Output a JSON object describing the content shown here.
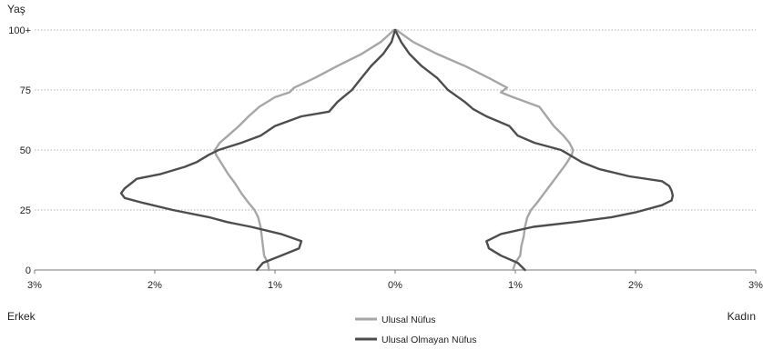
{
  "chart_data": {
    "type": "line",
    "subtype": "population-pyramid",
    "title": "",
    "ylabel": "Yaş",
    "left_label": "Erkek",
    "right_label": "Kadın",
    "xlim": [
      -3,
      3
    ],
    "ylim": [
      0,
      100
    ],
    "x_ticks": [
      {
        "value": -3,
        "label": "3%"
      },
      {
        "value": -2,
        "label": "2%"
      },
      {
        "value": -1,
        "label": "1%"
      },
      {
        "value": 0,
        "label": "0%"
      },
      {
        "value": 1,
        "label": "1%"
      },
      {
        "value": 2,
        "label": "2%"
      },
      {
        "value": 3,
        "label": "3%"
      }
    ],
    "y_ticks": [
      {
        "value": 0,
        "label": "0"
      },
      {
        "value": 25,
        "label": "25"
      },
      {
        "value": 50,
        "label": "50"
      },
      {
        "value": 75,
        "label": "75"
      },
      {
        "value": 100,
        "label": "100+"
      }
    ],
    "grid": "horizontal dotted",
    "legend_position": "bottom-center",
    "series": [
      {
        "name": "Ulusal Nüfus",
        "color": "#a6a6a6",
        "male": [
          [
            0,
            1.05
          ],
          [
            3,
            1.06
          ],
          [
            6,
            1.09
          ],
          [
            10,
            1.1
          ],
          [
            14,
            1.11
          ],
          [
            18,
            1.12
          ],
          [
            22,
            1.14
          ],
          [
            25,
            1.17
          ],
          [
            28,
            1.22
          ],
          [
            32,
            1.28
          ],
          [
            36,
            1.33
          ],
          [
            40,
            1.39
          ],
          [
            44,
            1.44
          ],
          [
            48,
            1.49
          ],
          [
            50,
            1.5
          ],
          [
            53,
            1.46
          ],
          [
            56,
            1.39
          ],
          [
            60,
            1.3
          ],
          [
            64,
            1.22
          ],
          [
            68,
            1.13
          ],
          [
            72,
            1.0
          ],
          [
            74,
            0.88
          ],
          [
            76,
            0.84
          ],
          [
            80,
            0.67
          ],
          [
            85,
            0.48
          ],
          [
            90,
            0.28
          ],
          [
            95,
            0.12
          ],
          [
            100,
            0.01
          ]
        ],
        "female": [
          [
            0,
            0.98
          ],
          [
            3,
            1.0
          ],
          [
            6,
            1.04
          ],
          [
            10,
            1.05
          ],
          [
            14,
            1.07
          ],
          [
            18,
            1.08
          ],
          [
            22,
            1.1
          ],
          [
            25,
            1.13
          ],
          [
            28,
            1.18
          ],
          [
            32,
            1.24
          ],
          [
            36,
            1.3
          ],
          [
            40,
            1.36
          ],
          [
            44,
            1.42
          ],
          [
            48,
            1.47
          ],
          [
            50,
            1.48
          ],
          [
            53,
            1.45
          ],
          [
            56,
            1.4
          ],
          [
            60,
            1.32
          ],
          [
            64,
            1.26
          ],
          [
            68,
            1.2
          ],
          [
            72,
            0.98
          ],
          [
            74,
            0.88
          ],
          [
            76,
            0.93
          ],
          [
            80,
            0.78
          ],
          [
            85,
            0.58
          ],
          [
            90,
            0.35
          ],
          [
            95,
            0.15
          ],
          [
            100,
            0.01
          ]
        ]
      },
      {
        "name": "Ulusal Olmayan Nüfus",
        "color": "#4d4d4d",
        "male": [
          [
            0,
            1.15
          ],
          [
            3,
            1.1
          ],
          [
            6,
            0.95
          ],
          [
            9,
            0.8
          ],
          [
            12,
            0.78
          ],
          [
            15,
            0.95
          ],
          [
            18,
            1.2
          ],
          [
            20,
            1.4
          ],
          [
            22,
            1.55
          ],
          [
            25,
            1.85
          ],
          [
            28,
            2.1
          ],
          [
            30,
            2.25
          ],
          [
            32,
            2.28
          ],
          [
            34,
            2.25
          ],
          [
            36,
            2.2
          ],
          [
            38,
            2.15
          ],
          [
            40,
            1.95
          ],
          [
            43,
            1.75
          ],
          [
            45,
            1.65
          ],
          [
            48,
            1.55
          ],
          [
            50,
            1.47
          ],
          [
            53,
            1.28
          ],
          [
            56,
            1.12
          ],
          [
            60,
            1.0
          ],
          [
            64,
            0.78
          ],
          [
            66,
            0.55
          ],
          [
            70,
            0.48
          ],
          [
            75,
            0.36
          ],
          [
            80,
            0.28
          ],
          [
            85,
            0.2
          ],
          [
            90,
            0.1
          ],
          [
            95,
            0.03
          ],
          [
            100,
            0.0
          ]
        ],
        "female": [
          [
            0,
            1.08
          ],
          [
            3,
            1.02
          ],
          [
            6,
            0.88
          ],
          [
            9,
            0.78
          ],
          [
            12,
            0.76
          ],
          [
            15,
            0.88
          ],
          [
            18,
            1.15
          ],
          [
            20,
            1.5
          ],
          [
            22,
            1.8
          ],
          [
            24,
            2.0
          ],
          [
            27,
            2.22
          ],
          [
            29,
            2.3
          ],
          [
            31,
            2.31
          ],
          [
            33,
            2.3
          ],
          [
            35,
            2.28
          ],
          [
            37,
            2.22
          ],
          [
            39,
            1.95
          ],
          [
            42,
            1.7
          ],
          [
            45,
            1.55
          ],
          [
            48,
            1.45
          ],
          [
            50,
            1.38
          ],
          [
            53,
            1.16
          ],
          [
            56,
            1.02
          ],
          [
            60,
            0.95
          ],
          [
            64,
            0.76
          ],
          [
            67,
            0.65
          ],
          [
            70,
            0.58
          ],
          [
            75,
            0.44
          ],
          [
            80,
            0.35
          ],
          [
            85,
            0.22
          ],
          [
            90,
            0.12
          ],
          [
            95,
            0.05
          ],
          [
            100,
            0.0
          ]
        ]
      }
    ]
  }
}
